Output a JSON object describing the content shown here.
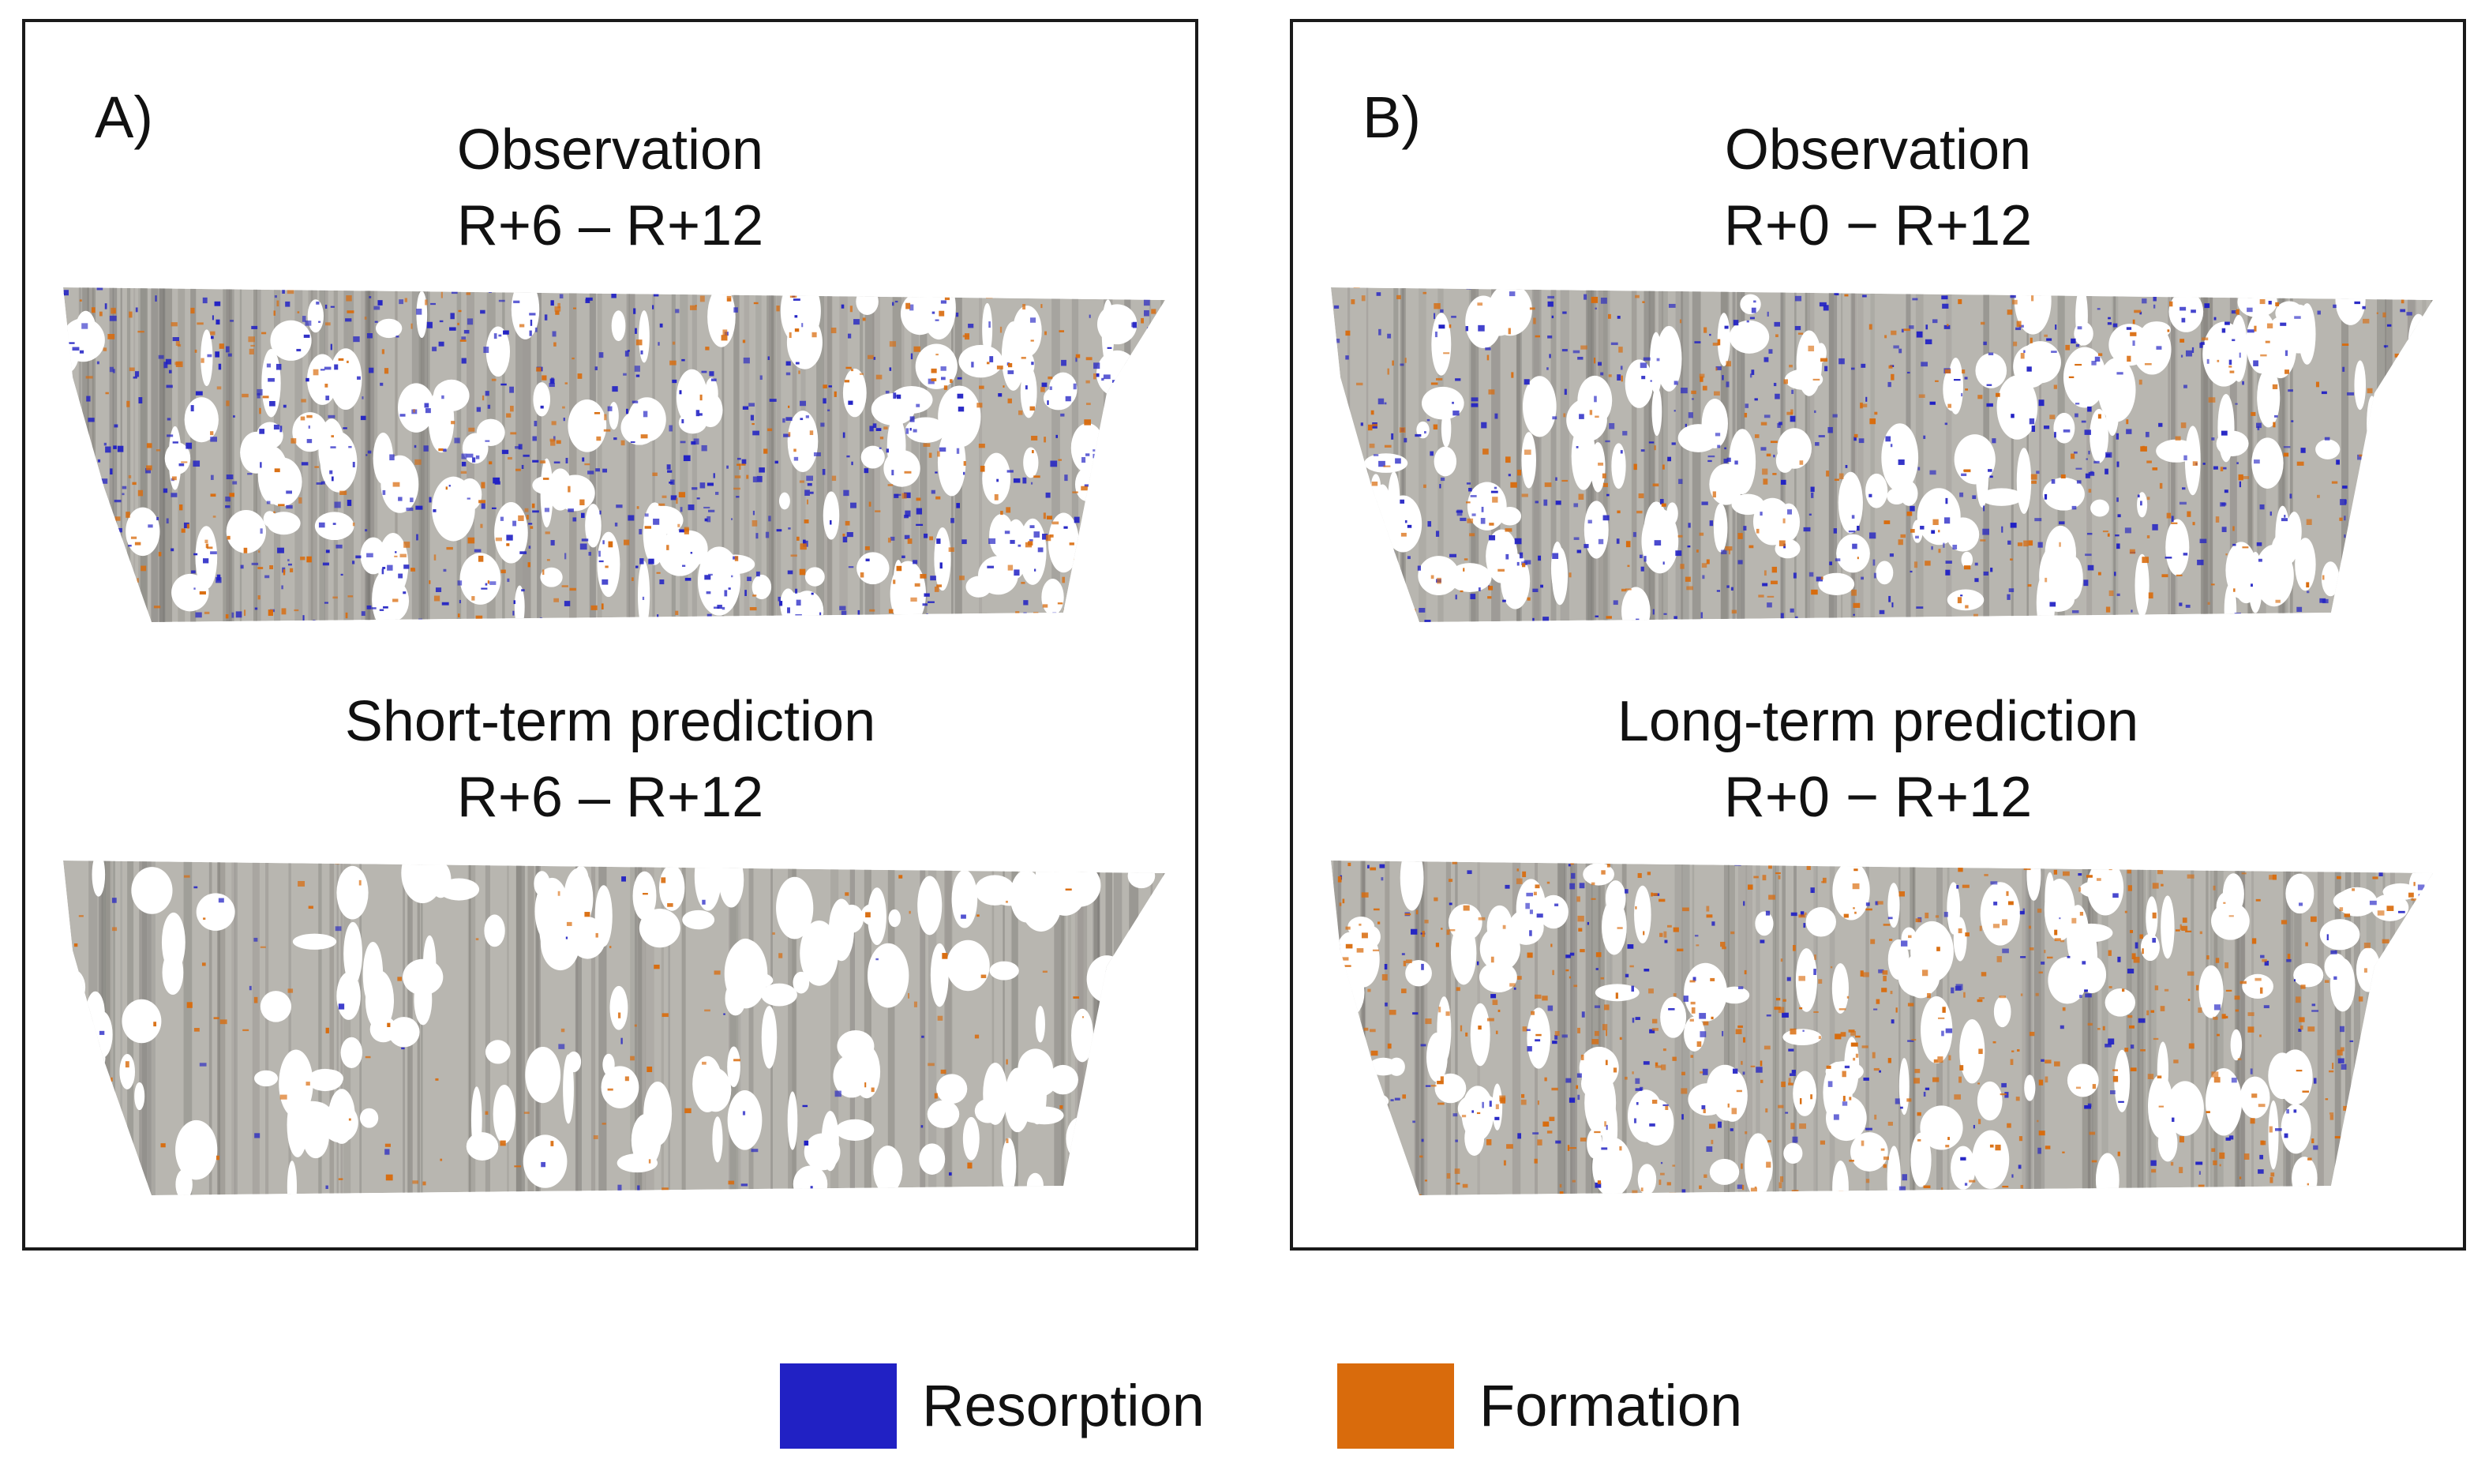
{
  "panels": [
    {
      "letter": "A)",
      "top_caption": [
        "Observation",
        "R+6 – R+12"
      ],
      "bottom_caption": [
        "Short-term prediction",
        "R+6 – R+12"
      ]
    },
    {
      "letter": "B)",
      "top_caption": [
        "Observation",
        "R+0 − R+12"
      ],
      "bottom_caption": [
        "Long-term prediction",
        "R+0 − R+12"
      ]
    }
  ],
  "legend": [
    {
      "label": "Resorption",
      "color": "#2121c4"
    },
    {
      "label": "Formation",
      "color": "#d96b0c"
    }
  ],
  "colors": {
    "bone": "#b8b6b0",
    "bone_shade": "#7a7874",
    "resorption": "#2121c4",
    "formation": "#d96b0c"
  }
}
